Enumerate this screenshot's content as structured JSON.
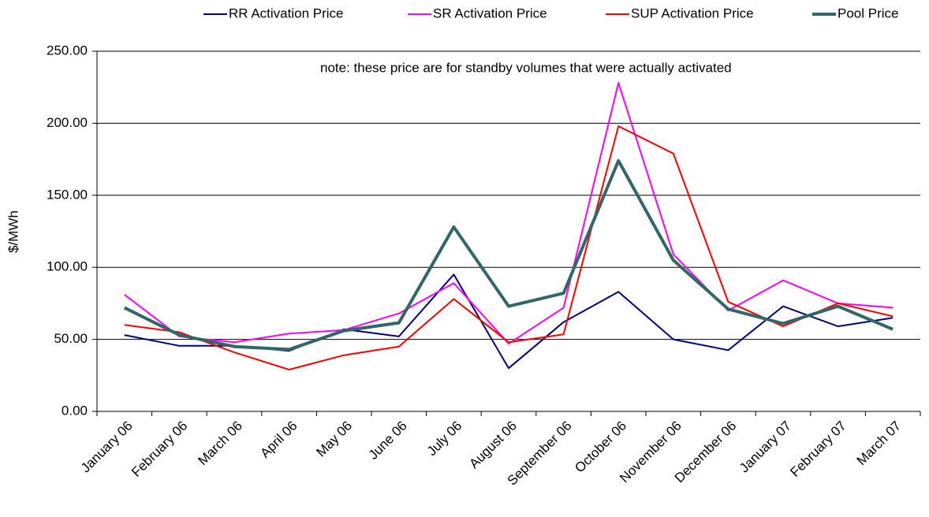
{
  "chart_data": {
    "type": "line",
    "y_label": "$/MWh",
    "annotation": "note: these price are for standby volumes that were actually activated",
    "categories": [
      "January 06",
      "February 06",
      "March 06",
      "April 06",
      "May 06",
      "June 06",
      "July 06",
      "August 06",
      "September 06",
      "October 06",
      "November 06",
      "December 06",
      "January 07",
      "February 07",
      "March 07"
    ],
    "series": [
      {
        "name": "RR Activation Price",
        "color": "#000080",
        "values": [
          53,
          45.5,
          45.5,
          42,
          57,
          52,
          95,
          30,
          62,
          83,
          50,
          42.5,
          73,
          59,
          65
        ]
      },
      {
        "name": "SR Activation Price",
        "color": "#ff00ff",
        "values": [
          81,
          52,
          48,
          54,
          56.5,
          68,
          89,
          47,
          72,
          228,
          109,
          70,
          91,
          75,
          72
        ]
      },
      {
        "name": "SUP Activation Price",
        "color": "#ff0000",
        "values": [
          60,
          55,
          41,
          29,
          39,
          45,
          78,
          48,
          53.5,
          198,
          179,
          76,
          59,
          75,
          66
        ]
      },
      {
        "name": "Pool Price",
        "color": "#336666",
        "values": [
          72,
          53,
          45,
          43,
          56,
          61.5,
          128,
          73,
          82,
          174,
          105,
          71,
          61,
          73,
          57
        ]
      }
    ],
    "ylim": [
      0,
      250
    ],
    "yticks": [
      {
        "value": 0,
        "label": "0.00"
      },
      {
        "value": 50,
        "label": "50.00"
      },
      {
        "value": 100,
        "label": "100.00"
      },
      {
        "value": 150,
        "label": "150.00"
      },
      {
        "value": 200,
        "label": "200.00"
      },
      {
        "value": 250,
        "label": "250.00"
      }
    ],
    "grid": true,
    "legend": "top"
  }
}
